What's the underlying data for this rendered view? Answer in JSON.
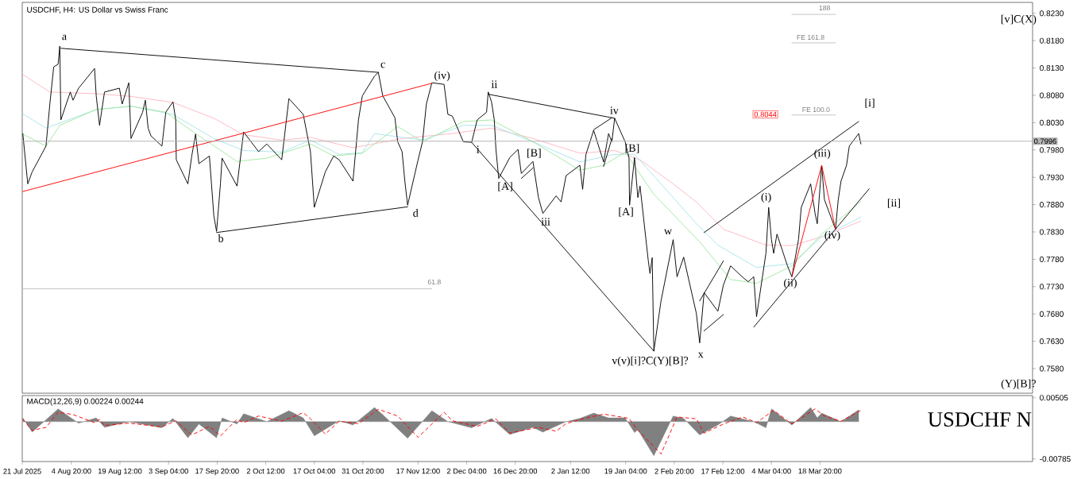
{
  "chart_data": [
    {
      "type": "line",
      "title": "USDCHF, H4:  US Dollar vs Swiss Franc",
      "xlim": [
        "2025-07-21T00:00",
        "2026-05-22T00:00"
      ],
      "ylim": [
        0.7535,
        0.825
      ],
      "tick_labels": "y",
      "yticks": [
        {
          "value": 0.758,
          "label": "0.7580"
        },
        {
          "value": 0.763,
          "label": "0.7630"
        },
        {
          "value": 0.768,
          "label": "0.7680"
        },
        {
          "value": 0.773,
          "label": "0.7730"
        },
        {
          "value": 0.778,
          "label": "0.7780"
        },
        {
          "value": 0.783,
          "label": "0.7830"
        },
        {
          "value": 0.788,
          "label": "0.7880"
        },
        {
          "value": 0.793,
          "label": "0.7930"
        },
        {
          "value": 0.798,
          "label": "0.7980"
        },
        {
          "value": 0.803,
          "label": "0.8030"
        },
        {
          "value": 0.808,
          "label": "0.8080"
        },
        {
          "value": 0.813,
          "label": "0.8130"
        },
        {
          "value": 0.818,
          "label": "0.8180"
        },
        {
          "value": 0.823,
          "label": "0.8230"
        }
      ],
      "series": [
        {
          "color": "#ffb6c1",
          "x": [
            "2025-07-21T04:00",
            "2025-07-29T08:00",
            "2025-08-12T08:00",
            "2025-08-22T20:00",
            "2025-09-04T12:00",
            "2025-09-16T20:00",
            "2025-09-25T20:00",
            "2025-10-07T08:00",
            "2025-10-16T00:00",
            "2025-10-28T20:00",
            "2025-11-12T16:00",
            "2025-11-27T20:00",
            "2025-12-09T16:00",
            "2025-12-22T04:00",
            "2026-01-05T08:00",
            "2026-01-15T20:00",
            "2026-01-23T12:00",
            "2026-02-02T12:00",
            "2026-02-09T12:00",
            "2026-02-17T16:00",
            "2026-03-02T12:00",
            "2026-03-10T08:00",
            "2026-03-19T08:00",
            "2026-03-31T04:00"
          ],
          "values": [
            0.8118,
            0.8086,
            0.8083,
            0.8078,
            0.8067,
            0.8038,
            0.8008,
            0.7998,
            0.8003,
            0.7984,
            0.8001,
            0.801,
            0.802,
            0.8001,
            0.7974,
            0.7979,
            0.7962,
            0.7918,
            0.7885,
            0.7835,
            0.7806,
            0.7805,
            0.7821,
            0.785
          ]
        },
        {
          "color": "#a8e4ec",
          "x": [
            "2025-07-21T04:00",
            "2025-07-28T04:00",
            "2025-08-12T08:00",
            "2025-08-22T20:00",
            "2025-09-04T12:00",
            "2025-09-16T20:00",
            "2025-09-25T20:00",
            "2025-10-07T08:00",
            "2025-10-16T00:00",
            "2025-10-24T16:00",
            "2025-10-31T16:00",
            "2025-11-04T08:00",
            "2025-11-18T20:00",
            "2025-12-01T04:00",
            "2025-12-09T16:00",
            "2025-12-22T04:00",
            "2026-01-05T08:00",
            "2026-01-15T20:00",
            "2026-01-21T20:00",
            "2026-02-02T12:00",
            "2026-02-09T12:00",
            "2026-02-16T00:00",
            "2026-02-27T16:00",
            "2026-03-10T08:00",
            "2026-03-19T08:00",
            "2026-03-31T04:00"
          ],
          "values": [
            0.8046,
            0.802,
            0.8054,
            0.806,
            0.8045,
            0.8001,
            0.7979,
            0.7976,
            0.7998,
            0.7972,
            0.7975,
            0.801,
            0.7998,
            0.8025,
            0.8025,
            0.7995,
            0.7958,
            0.7972,
            0.7972,
            0.7893,
            0.7845,
            0.7806,
            0.7765,
            0.7772,
            0.7821,
            0.7857
          ]
        },
        {
          "color": "#a0e8a0",
          "x": [
            "2025-07-21T04:00",
            "2025-07-28T04:00",
            "2025-08-01T08:00",
            "2025-08-12T08:00",
            "2025-08-22T20:00",
            "2025-09-02T08:00",
            "2025-09-11T08:00",
            "2025-09-23T20:00",
            "2025-10-02T20:00",
            "2025-10-16T00:00",
            "2025-10-23T00:00",
            "2025-10-31T16:00",
            "2025-11-11T08:00",
            "2025-11-18T20:00",
            "2025-12-01T04:00",
            "2025-12-09T16:00",
            "2025-12-22T04:00",
            "2026-01-05T08:00",
            "2026-01-12T12:00",
            "2026-01-19T00:00",
            "2026-01-27T16:00",
            "2026-02-10T12:00",
            "2026-02-19T20:00",
            "2026-02-27T16:00",
            "2026-03-10T08:00",
            "2026-03-19T08:00",
            "2026-03-31T04:00"
          ],
          "values": [
            0.8009,
            0.7987,
            0.8025,
            0.8054,
            0.806,
            0.8049,
            0.801,
            0.7959,
            0.7965,
            0.7991,
            0.7969,
            0.7974,
            0.8023,
            0.7995,
            0.8032,
            0.8035,
            0.7995,
            0.7943,
            0.7952,
            0.7976,
            0.7899,
            0.7812,
            0.7743,
            0.7736,
            0.7768,
            0.7826,
            0.7886
          ]
        },
        {
          "color": "#000000",
          "x": [
            "2025-07-21T04:00",
            "2025-07-22T16:00",
            "2025-07-24T00:00",
            "2025-07-28T04:00",
            "2025-07-29T08:00",
            "2025-07-30T12:00",
            "2025-07-31T20:00",
            "2025-08-01T08:00",
            "2025-08-01T16:00",
            "2025-08-04T12:00",
            "2025-08-05T08:00",
            "2025-08-07T00:00",
            "2025-08-11T20:00",
            "2025-08-12T08:00",
            "2025-08-13T08:00",
            "2025-08-14T20:00",
            "2025-08-19T08:00",
            "2025-08-20T04:00",
            "2025-08-22T04:00",
            "2025-08-22T20:00",
            "2025-08-26T08:00",
            "2025-08-27T04:00",
            "2025-08-28T00:00",
            "2025-08-28T20:00",
            "2025-09-01T04:00",
            "2025-09-02T08:00",
            "2025-09-04T12:00",
            "2025-09-05T08:00",
            "2025-09-05T12:00",
            "2025-09-09T00:00",
            "2025-09-10T04:00",
            "2025-09-11T08:00",
            "2025-09-12T08:00",
            "2025-09-15T12:00",
            "2025-09-16T20:00",
            "2025-09-17T16:00",
            "2025-09-18T20:00",
            "2025-09-19T08:00",
            "2025-09-23T20:00",
            "2025-09-25T20:00",
            "2025-09-30T08:00",
            "2025-10-02T20:00",
            "2025-10-07T08:00",
            "2025-10-09T12:00",
            "2025-10-13T20:00",
            "2025-10-16T00:00",
            "2025-10-17T04:00",
            "2025-10-20T12:00",
            "2025-10-23T00:00",
            "2025-10-24T16:00",
            "2025-10-28T20:00",
            "2025-10-30T12:00",
            "2025-10-31T16:00",
            "2025-11-04T08:00",
            "2025-11-05T12:00",
            "2025-11-06T20:00",
            "2025-11-10T12:00",
            "2025-11-11T08:00",
            "2025-11-12T16:00",
            "2025-11-13T12:00",
            "2025-11-14T08:00",
            "2025-11-17T12:00",
            "2025-11-18T20:00",
            "2025-11-20T00:00",
            "2025-11-21T16:00",
            "2025-11-25T08:00",
            "2025-11-26T12:00",
            "2025-11-27T20:00",
            "2025-12-01T04:00",
            "2025-12-03T16:00",
            "2025-12-05T08:00",
            "2025-12-08T04:00",
            "2025-12-08T16:00",
            "2025-12-09T16:00",
            "2025-12-10T12:00",
            "2025-12-11T00:00",
            "2025-12-11T20:00",
            "2025-12-15T04:00",
            "2025-12-17T16:00",
            "2025-12-18T16:00",
            "2025-12-22T04:00",
            "2025-12-23T20:00",
            "2025-12-25T04:00",
            "2025-12-29T04:00",
            "2025-12-30T16:00",
            "2026-01-01T04:00",
            "2026-01-05T08:00",
            "2026-01-06T04:00",
            "2026-01-07T04:00",
            "2026-01-09T12:00",
            "2026-01-12T12:00",
            "2026-01-14T00:00",
            "2026-01-15T00:00",
            "2026-01-15T20:00",
            "2026-01-19T00:00",
            "2026-01-20T04:00",
            "2026-01-20T08:00",
            "2026-01-21T20:00",
            "2026-01-22T20:00",
            "2026-01-23T12:00",
            "2026-01-26T00:00",
            "2026-01-26T12:00",
            "2026-01-27T04:00",
            "2026-01-27T16:00",
            "2026-01-29T20:00",
            "2026-02-02T12:00",
            "2026-02-03T16:00",
            "2026-02-05T16:00",
            "2026-02-09T12:00",
            "2026-02-10T12:00",
            "2026-02-11T20:00",
            "2026-02-16T00:00",
            "2026-02-17T16:00",
            "2026-02-19T20:00",
            "2026-02-23T12:00",
            "2026-02-25T04:00",
            "2026-02-26T20:00",
            "2026-02-27T16:00",
            "2026-03-02T12:00",
            "2026-03-03T08:00",
            "2026-03-04T04:00",
            "2026-03-04T20:00",
            "2026-03-05T20:00",
            "2026-03-09T00:00",
            "2026-03-10T08:00",
            "2026-03-12T08:00",
            "2026-03-13T04:00",
            "2026-03-16T00:00",
            "2026-03-17T08:00",
            "2026-03-18T00:00",
            "2026-03-19T08:00",
            "2026-03-20T04:00",
            "2026-03-23T12:00",
            "2026-03-24T08:00",
            "2026-03-25T04:00",
            "2026-03-26T20:00",
            "2026-03-27T16:00",
            "2026-03-30T12:00",
            "2026-03-31T04:00"
          ],
          "values": [
            0.801,
            0.7918,
            0.794,
            0.7987,
            0.8064,
            0.8132,
            0.8137,
            0.817,
            0.8035,
            0.8086,
            0.8071,
            0.8093,
            0.8129,
            0.8079,
            0.8025,
            0.8086,
            0.8093,
            0.8064,
            0.8103,
            0.8001,
            0.8049,
            0.8071,
            0.802,
            0.8006,
            0.7987,
            0.8049,
            0.8068,
            0.8035,
            0.7962,
            0.7918,
            0.7969,
            0.8009,
            0.7955,
            0.7969,
            0.786,
            0.7831,
            0.7918,
            0.7965,
            0.7914,
            0.8013,
            0.7977,
            0.7991,
            0.7962,
            0.8074,
            0.8045,
            0.7977,
            0.7875,
            0.794,
            0.7969,
            0.7962,
            0.7923,
            0.8035,
            0.8079,
            0.8115,
            0.8122,
            0.8079,
            0.8039,
            0.7995,
            0.7977,
            0.7923,
            0.7879,
            0.7962,
            0.7995,
            0.8064,
            0.8103,
            0.81,
            0.8045,
            0.8042,
            0.7995,
            0.7994,
            0.8035,
            0.8049,
            0.8086,
            0.8068,
            0.8035,
            0.7981,
            0.7928,
            0.7966,
            0.7981,
            0.7937,
            0.7959,
            0.7893,
            0.7864,
            0.7896,
            0.7885,
            0.7933,
            0.7952,
            0.7908,
            0.7972,
            0.8016,
            0.7958,
            0.801,
            0.7995,
            0.8038,
            0.7995,
            0.7966,
            0.7879,
            0.7966,
            0.7893,
            0.7914,
            0.7777,
            0.7754,
            0.7783,
            0.7612,
            0.7704,
            0.7816,
            0.7748,
            0.7784,
            0.7681,
            0.7627,
            0.7719,
            0.7685,
            0.7733,
            0.7768,
            0.7747,
            0.7739,
            0.7748,
            0.7675,
            0.7791,
            0.7875,
            0.7816,
            0.7791,
            0.7826,
            0.7768,
            0.7748,
            0.7816,
            0.7875,
            0.7918,
            0.7864,
            0.7845,
            0.7952,
            0.7889,
            0.7835,
            0.7889,
            0.7923,
            0.7952,
            0.7987,
            0.801,
            0.7991
          ]
        },
        {
          "color": "#000000",
          "x": [
            "2025-08-01T16:00",
            "2025-11-05T12:00"
          ],
          "values": [
            0.8166,
            0.8122
          ]
        },
        {
          "color": "#000000",
          "x": [
            "2025-09-17T16:00",
            "2025-11-14T08:00"
          ],
          "values": [
            0.7829,
            0.7876
          ]
        },
        {
          "color": "#ff0000",
          "x": [
            "2025-07-21T04:00",
            "2025-11-21T16:00"
          ],
          "values": [
            0.7904,
            0.8102
          ]
        },
        {
          "color": "#000000",
          "x": [
            "2025-12-03T16:00",
            "2026-01-27T16:00"
          ],
          "values": [
            0.7994,
            0.7612
          ]
        },
        {
          "color": "#000000",
          "x": [
            "2025-12-08T16:00",
            "2026-01-15T20:00"
          ],
          "values": [
            0.8082,
            0.8038
          ]
        },
        {
          "color": "#000000",
          "x": [
            "2025-12-18T16:00",
            "2025-12-22T04:00"
          ],
          "values": [
            0.7928,
            0.7947
          ]
        },
        {
          "color": "#000000",
          "x": [
            "2026-01-09T12:00",
            "2026-01-15T00:00"
          ],
          "values": [
            0.8017,
            0.8039
          ]
        },
        {
          "color": "#000000",
          "x": [
            "2026-01-12T12:00",
            "2026-01-15T00:00"
          ],
          "values": [
            0.795,
            0.8001
          ]
        },
        {
          "color": "#000000",
          "x": [
            "2026-02-10T12:00",
            "2026-02-17T16:00"
          ],
          "values": [
            0.7704,
            0.7777
          ]
        },
        {
          "color": "#000000",
          "x": [
            "2026-02-11T20:00",
            "2026-02-17T16:00"
          ],
          "values": [
            0.7649,
            0.7679
          ]
        },
        {
          "color": "#000000",
          "x": [
            "2026-02-11T20:00",
            "2026-03-30T12:00"
          ],
          "values": [
            0.7829,
            0.8032
          ]
        },
        {
          "color": "#000000",
          "x": [
            "2026-02-26T20:00",
            "2026-04-02T16:00"
          ],
          "values": [
            0.7656,
            0.7909
          ]
        },
        {
          "color": "#ff0000",
          "x": [
            "2026-03-10T08:00",
            "2026-03-19T08:00",
            "2026-03-23T12:00"
          ],
          "values": [
            0.7748,
            0.7952,
            0.7835
          ]
        },
        {
          "color": "#c0c0c0",
          "x": [
            "2026-03-10T08:00",
            "2026-03-23T12:00"
          ],
          "values": [
            0.8228,
            0.8228
          ]
        },
        {
          "color": "#c0c0c0",
          "x": [
            "2026-03-10T08:00",
            "2026-03-23T12:00"
          ],
          "values": [
            0.8176,
            0.8176
          ]
        },
        {
          "color": "#c0c0c0",
          "x": [
            "2026-03-10T08:00",
            "2026-03-23T12:00"
          ],
          "values": [
            0.8044,
            0.8044
          ]
        },
        {
          "color": "#c0c0c0",
          "x": [
            "2025-07-21T00:00",
            "2025-11-21T16:00"
          ],
          "values": [
            0.7726,
            0.7726
          ]
        }
      ],
      "ref_lines": [
        {
          "axis": "y",
          "value": 0.7996,
          "label": "0.7996",
          "color": "#b4b4b4"
        }
      ],
      "annotations": [
        "a",
        "b",
        "c",
        "d",
        "(iv)",
        "i",
        "ii",
        "[A]",
        "[B]",
        "iii",
        "iv",
        "[B]",
        "[A]",
        "v(v)[i]?C(Y)[B]?",
        "w",
        "x",
        "(i)",
        "(ii)",
        "(iii)",
        "(iv)",
        "[i]",
        "[ii]",
        "[v]C(X)",
        "(Y)[B]?",
        "188",
        "FE 161.8",
        "FE 100.0",
        "61.8",
        "0.8044"
      ]
    },
    {
      "type": "area",
      "title": "MACD(12,26,9) 0.00224 0.00244",
      "xlim": [
        "2025-07-21T00:00",
        "2026-05-22T00:00"
      ],
      "ylim": [
        -0.0084,
        0.0055
      ],
      "yticks": [
        {
          "value": 0.00505,
          "label": "0.00505"
        },
        {
          "value": -0.00785,
          "label": "-0.00785"
        }
      ],
      "xticks": [
        {
          "value": "2025-07-21T00:00",
          "label": "21 Jul 2025"
        },
        {
          "value": "2025-08-04T20:00",
          "label": "4 Aug 20:00"
        },
        {
          "value": "2025-08-19T12:00",
          "label": "19 Aug 12:00"
        },
        {
          "value": "2025-09-03T04:00",
          "label": "3 Sep 04:00"
        },
        {
          "value": "2025-09-17T20:00",
          "label": "17 Sep 20:00"
        },
        {
          "value": "2025-10-02T12:00",
          "label": "2 Oct 12:00"
        },
        {
          "value": "2025-10-17T04:00",
          "label": "17 Oct 04:00"
        },
        {
          "value": "2025-10-31T20:00",
          "label": "31 Oct 20:00"
        },
        {
          "value": "2025-11-17T12:00",
          "label": "17 Nov 12:00"
        },
        {
          "value": "2025-12-02T04:00",
          "label": "2 Dec 04:00"
        },
        {
          "value": "2025-12-16T20:00",
          "label": "16 Dec 20:00"
        },
        {
          "value": "2026-01-02T12:00",
          "label": "2 Jan 12:00"
        },
        {
          "value": "2026-01-19T04:00",
          "label": "19 Jan 04:00"
        },
        {
          "value": "2026-02-02T20:00",
          "label": "2 Feb 20:00"
        },
        {
          "value": "2026-02-17T12:00",
          "label": "17 Feb 12:00"
        },
        {
          "value": "2026-03-04T04:00",
          "label": "4 Mar 04:00"
        },
        {
          "value": "2026-03-18T20:00",
          "label": "18 Mar 20:00"
        }
      ],
      "series": [
        {
          "color": "#808080",
          "x": [
            "2025-07-21T04:00",
            "2025-07-24T00:00",
            "2025-07-31T20:00",
            "2025-08-07T00:00",
            "2025-08-12T08:00",
            "2025-08-14T20:00",
            "2025-08-22T04:00",
            "2025-09-01T04:00",
            "2025-09-04T12:00",
            "2025-09-09T00:00",
            "2025-09-12T08:00",
            "2025-09-17T16:00",
            "2025-09-19T08:00",
            "2025-09-23T20:00",
            "2025-09-25T20:00",
            "2025-10-02T20:00",
            "2025-10-09T12:00",
            "2025-10-13T20:00",
            "2025-10-17T04:00",
            "2025-10-24T16:00",
            "2025-10-28T20:00",
            "2025-11-04T08:00",
            "2025-11-06T20:00",
            "2025-11-14T08:00",
            "2025-11-21T16:00",
            "2025-11-26T12:00",
            "2025-12-03T16:00",
            "2025-12-09T16:00",
            "2025-12-15T04:00",
            "2025-12-22T04:00",
            "2025-12-25T04:00",
            "2026-01-01T04:00",
            "2026-01-05T08:00",
            "2026-01-09T12:00",
            "2026-01-14T00:00",
            "2026-01-19T00:00",
            "2026-01-21T20:00",
            "2026-01-22T20:00",
            "2026-01-27T16:00",
            "2026-02-02T12:00",
            "2026-02-05T16:00",
            "2026-02-10T12:00",
            "2026-02-16T00:00",
            "2026-02-19T20:00",
            "2026-02-26T20:00",
            "2026-03-02T12:00",
            "2026-03-04T04:00",
            "2026-03-10T08:00",
            "2026-03-16T00:00",
            "2026-03-18T00:00",
            "2026-03-19T08:00",
            "2026-03-25T04:00",
            "2026-03-30T12:00"
          ],
          "values": [
            0.0008,
            -0.0022,
            0.0027,
            -0.0003,
            0.0008,
            -0.0012,
            0,
            -0.0013,
            0.0007,
            -0.0034,
            -0.0005,
            -0.0034,
            0.0008,
            -0.0005,
            0.0017,
            0,
            0.0023,
            0.0008,
            -0.003,
            0.0002,
            -0.0007,
            0.003,
            0.0015,
            -0.0035,
            0.0023,
            0,
            -0.0013,
            0.0007,
            -0.0027,
            -0.0012,
            -0.0022,
            0,
            0.0007,
            0.0018,
            0.0008,
            0.0008,
            -0.0023,
            -0.0017,
            -0.0072,
            0.0012,
            0.0007,
            -0.0028,
            -0.0007,
            0.0012,
            0,
            -0.0013,
            0.0027,
            -0.0007,
            0.003,
            0.0008,
            0.0018,
            0,
            0.0025
          ]
        },
        {
          "type": "line",
          "color": "#ff0000",
          "line_style": "dashed",
          "x": [
            "2025-07-21T04:00",
            "2025-07-24T00:00",
            "2025-07-28T04:00",
            "2025-07-31T20:00",
            "2025-08-05T08:00",
            "2025-08-11T20:00",
            "2025-08-13T08:00",
            "2025-08-14T20:00",
            "2025-08-22T04:00",
            "2025-09-01T04:00",
            "2025-09-05T08:00",
            "2025-09-10T04:00",
            "2025-09-15T12:00",
            "2025-09-18T20:00",
            "2025-09-23T20:00",
            "2025-09-25T20:00",
            "2025-09-30T08:00",
            "2025-10-07T08:00",
            "2025-10-13T20:00",
            "2025-10-16T00:00",
            "2025-10-20T12:00",
            "2025-10-24T16:00",
            "2025-10-30T12:00",
            "2025-11-05T12:00",
            "2025-11-11T08:00",
            "2025-11-17T12:00",
            "2025-11-25T08:00",
            "2025-11-27T20:00",
            "2025-12-05T08:00",
            "2025-12-11T00:00",
            "2025-12-15T04:00",
            "2025-12-23T20:00",
            "2025-12-29T04:00",
            "2026-01-01T04:00",
            "2026-01-06T04:00",
            "2026-01-12T12:00",
            "2026-01-20T04:00",
            "2026-01-22T20:00",
            "2026-01-29T20:00",
            "2026-02-03T16:00",
            "2026-02-09T12:00",
            "2026-02-11T20:00",
            "2026-02-17T16:00",
            "2026-02-23T12:00",
            "2026-02-27T16:00",
            "2026-03-04T20:00",
            "2026-03-10T08:00",
            "2026-03-17T08:00",
            "2026-03-20T04:00",
            "2026-03-25T04:00",
            "2026-03-31T04:00"
          ],
          "values": [
            0.0005,
            -0.0018,
            -0.0012,
            0.002,
            0.0015,
            -0.0002,
            0.0005,
            -0.0008,
            -0.0003,
            -0.0011,
            0.0002,
            -0.0028,
            -0.001,
            -0.003,
            0.0005,
            -0.0002,
            0.0012,
            0.0001,
            0.0019,
            0.0006,
            -0.0026,
            0.0001,
            -0.0004,
            0.0026,
            0.0012,
            -0.0033,
            0.002,
            0.0002,
            -0.001,
            0.0006,
            -0.0024,
            -0.0012,
            -0.002,
            -0.0004,
            0.0006,
            0.0016,
            0.0007,
            -0.0018,
            -0.0068,
            0.001,
            0.0006,
            -0.0024,
            -0.0005,
            0.001,
            -0.0002,
            0.0024,
            -0.0005,
            0.0027,
            0.0012,
            0.0001,
            0.0024
          ]
        }
      ],
      "annotations": [
        "USDCHF N"
      ]
    }
  ]
}
